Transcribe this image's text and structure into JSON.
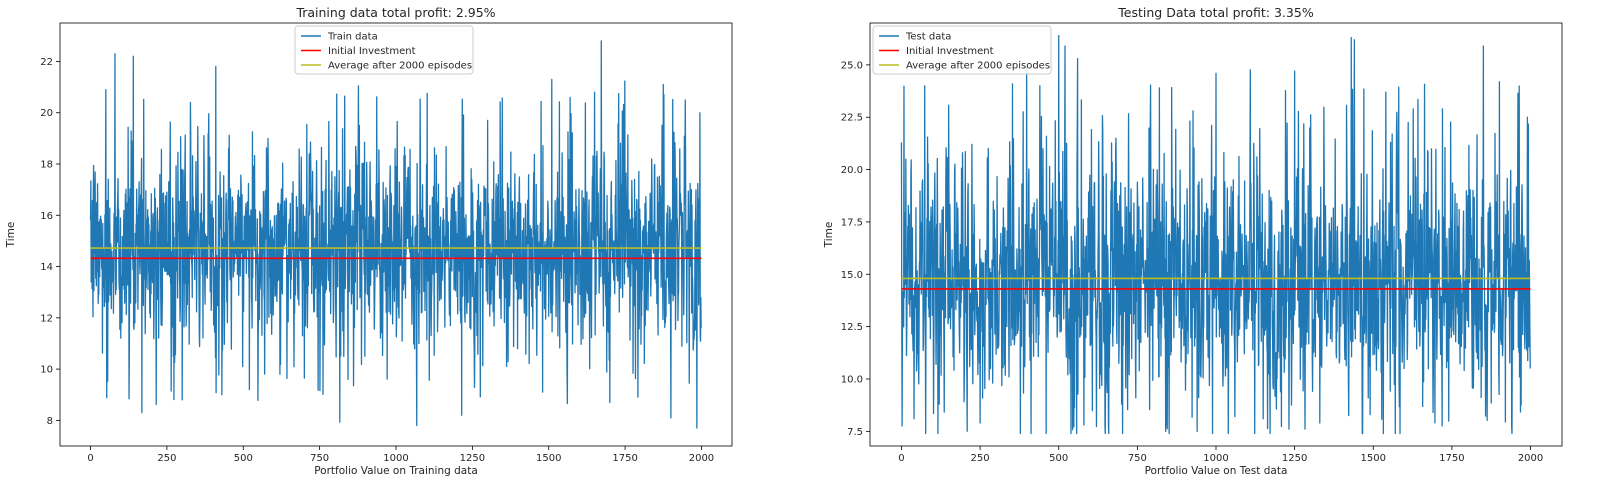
{
  "chart_data": [
    {
      "type": "line",
      "title": "Training data total profit: 2.95%",
      "xlabel": "Portfolio Value on Training data",
      "ylabel": "Time",
      "xlim": [
        -100,
        2100
      ],
      "ylim": [
        7.0,
        23.5
      ],
      "xticks": [
        0,
        250,
        500,
        750,
        1000,
        1250,
        1500,
        1750,
        2000
      ],
      "yticks": [
        8,
        10,
        12,
        14,
        16,
        18,
        20,
        22
      ],
      "ytick_labels": [
        "8",
        "10",
        "12",
        "14",
        "16",
        "18",
        "20",
        "22"
      ],
      "legend_position": "top-center",
      "grid": false,
      "series": [
        {
          "name": "Train data",
          "color": "#1f77b4",
          "n_points": 2000,
          "mean": 14.72,
          "envelope_points": [
            [
              0,
              15.8
            ],
            [
              50,
              20.9
            ],
            [
              80,
              22.3
            ],
            [
              140,
              22.2
            ],
            [
              168,
              8.3
            ],
            [
              260,
              17.6
            ],
            [
              300,
              8.8
            ],
            [
              410,
              21.8
            ],
            [
              430,
              9.0
            ],
            [
              520,
              9.2
            ],
            [
              620,
              9.8
            ],
            [
              800,
              17.5
            ],
            [
              880,
              19.5
            ],
            [
              1000,
              17.9
            ],
            [
              1068,
              7.8
            ],
            [
              1100,
              18.0
            ],
            [
              1215,
              8.2
            ],
            [
              1300,
              19.7
            ],
            [
              1480,
              9.1
            ],
            [
              1510,
              21.3
            ],
            [
              1570,
              20.6
            ],
            [
              1650,
              20.8
            ],
            [
              1672,
              22.8
            ],
            [
              1700,
              8.7
            ],
            [
              1875,
              21.1
            ],
            [
              1900,
              8.1
            ],
            [
              1985,
              7.7
            ],
            [
              1995,
              20.0
            ],
            [
              2000,
              11.6
            ]
          ]
        },
        {
          "name": "Initial Investment",
          "color": "#ff0000",
          "y": 14.32
        },
        {
          "name": "Average after 2000 episodes",
          "color": "#bcbd22",
          "y": 14.72
        }
      ]
    },
    {
      "type": "line",
      "title": "Testing Data total profit: 3.35%",
      "xlabel": "Portfolio Value on Test data",
      "ylabel": "Time",
      "xlim": [
        -100,
        2100
      ],
      "ylim": [
        6.8,
        27.0
      ],
      "xticks": [
        0,
        250,
        500,
        750,
        1000,
        1250,
        1500,
        1750,
        2000
      ],
      "yticks": [
        7.5,
        10.0,
        12.5,
        15.0,
        17.5,
        20.0,
        22.5,
        25.0
      ],
      "ytick_labels": [
        "7.5",
        "10.0",
        "12.5",
        "15.0",
        "17.5",
        "20.0",
        "22.5",
        "25.0"
      ],
      "legend_position": "top-left",
      "grid": false,
      "series": [
        {
          "name": "Test data",
          "color": "#1f77b4",
          "n_points": 2000,
          "mean": 14.8,
          "envelope_points": [
            [
              0,
              21.3
            ],
            [
              40,
              8.1
            ],
            [
              120,
              8.8
            ],
            [
              250,
              7.9
            ],
            [
              440,
              24.0
            ],
            [
              500,
              26.4
            ],
            [
              520,
              25.9
            ],
            [
              560,
              25.3
            ],
            [
              580,
              7.8
            ],
            [
              700,
              8.8
            ],
            [
              820,
              23.9
            ],
            [
              840,
              7.5
            ],
            [
              940,
              7.5
            ],
            [
              1000,
              24.6
            ],
            [
              1060,
              8.2
            ],
            [
              1150,
              8.1
            ],
            [
              1250,
              24.7
            ],
            [
              1330,
              7.9
            ],
            [
              1430,
              26.3
            ],
            [
              1440,
              26.2
            ],
            [
              1490,
              8.3
            ],
            [
              1540,
              23.7
            ],
            [
              1690,
              8.4
            ],
            [
              1720,
              22.9
            ],
            [
              1850,
              25.9
            ],
            [
              1940,
              7.7
            ],
            [
              1990,
              22.5
            ],
            [
              2000,
              10.5
            ]
          ]
        },
        {
          "name": "Initial Investment",
          "color": "#ff0000",
          "y": 14.3
        },
        {
          "name": "Average after 2000 episodes",
          "color": "#bcbd22",
          "y": 14.8
        }
      ]
    }
  ]
}
